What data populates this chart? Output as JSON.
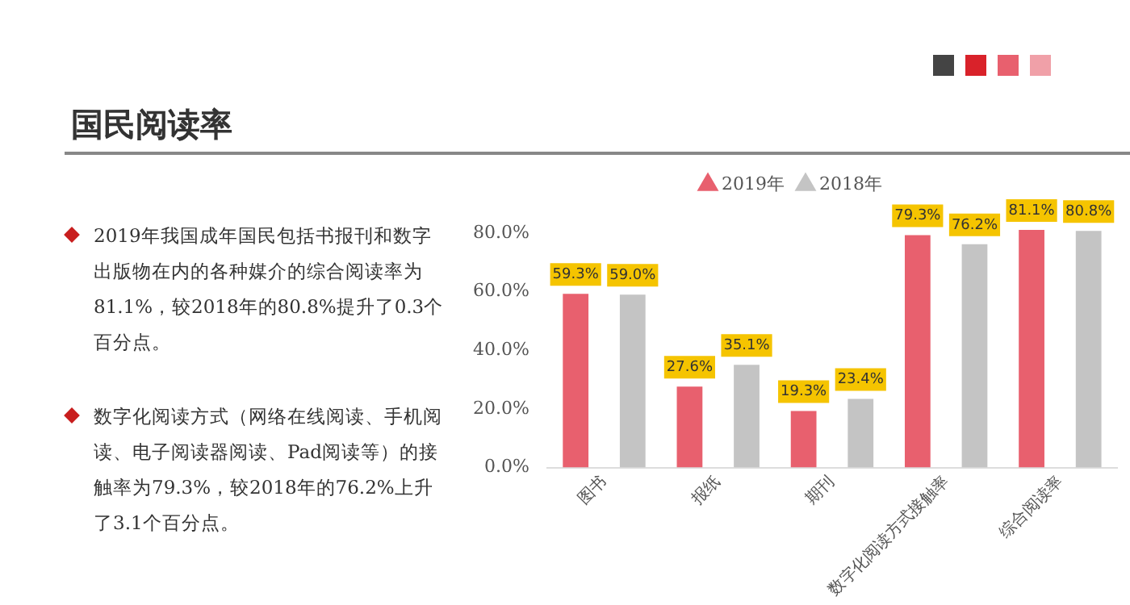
{
  "chart_data": {
    "type": "bar",
    "title": "国民阅读率",
    "annotations": [
      "2019年我国成年国民包括书报刊和数字出版物在内的各种媒介的综合阅读率为81.1%，较2018年的80.8%提升了0.3个百分点。",
      "数字化阅读方式（网络在线阅读、手机阅读、电子阅读器阅读、Pad阅读等）的接触率为79.3%，较2018年的76.2%上升了3.1个百分点。"
    ],
    "categories": [
      "图书",
      "报纸",
      "期刊",
      "数字化阅读方式接触率",
      "综合阅读率"
    ],
    "series": [
      {
        "name": "2019年",
        "color": "#e8606e",
        "values": [
          59.3,
          27.6,
          19.3,
          79.3,
          81.1
        ],
        "value_labels": [
          "59.3%",
          "27.6%",
          "19.3%",
          "79.3%",
          "81.1%"
        ]
      },
      {
        "name": "2018年",
        "color": "#c4c4c4",
        "values": [
          59.0,
          35.1,
          23.4,
          76.2,
          80.8
        ],
        "value_labels": [
          "59.0%",
          "35.1%",
          "23.4%",
          "76.2%",
          "80.8%"
        ]
      }
    ],
    "ylim": [
      0,
      88
    ],
    "yticks": [
      {
        "value": 0,
        "label": "0.0%"
      },
      {
        "value": 20,
        "label": "20.0%"
      },
      {
        "value": 40,
        "label": "40.0%"
      },
      {
        "value": 60,
        "label": "60.0%"
      },
      {
        "value": 80,
        "label": "80.0%"
      }
    ],
    "grid": false,
    "legend": "top"
  }
}
